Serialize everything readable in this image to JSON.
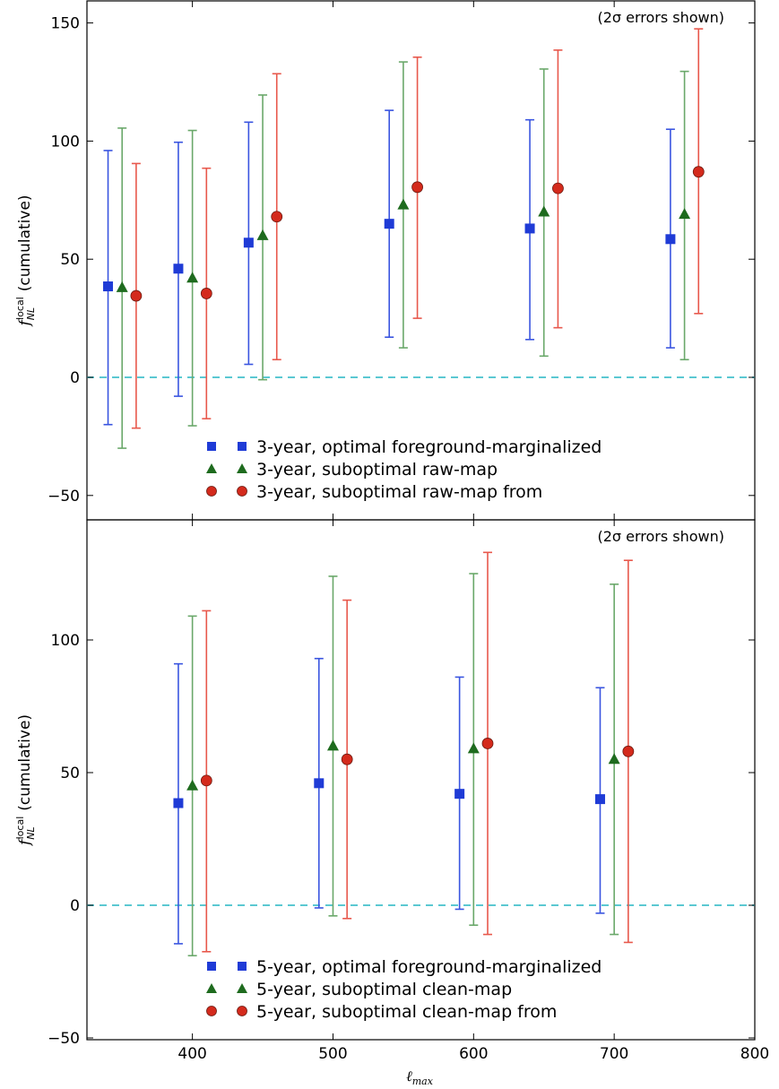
{
  "chart_data": [
    {
      "type": "scatter",
      "note": "(2σ errors shown)",
      "ylabel": "f_NL^local (cumulative)",
      "xlabel": "",
      "xlim": [
        325,
        800
      ],
      "ylim": [
        -60,
        160
      ],
      "yticks": [
        -50,
        0,
        50,
        100,
        150
      ],
      "ytick_labels": [
        "−50",
        "0",
        "50",
        "100",
        "150"
      ],
      "reference_line": {
        "y": 0,
        "style": "dashed",
        "color": "#5bc8d2"
      },
      "legend": {
        "position": "bottom-center"
      },
      "series": [
        {
          "name": "3-year, optimal foreground-marginalized",
          "marker": "square",
          "color": "#1f3bd6",
          "bar_color": "#3a55e0",
          "points": [
            {
              "x": 340,
              "y": 38.5,
              "lo": -20,
              "hi": 96
            },
            {
              "x": 390,
              "y": 46,
              "lo": -8,
              "hi": 99.5
            },
            {
              "x": 440,
              "y": 57,
              "lo": 5.5,
              "hi": 108
            },
            {
              "x": 540,
              "y": 65,
              "lo": 17,
              "hi": 113
            },
            {
              "x": 640,
              "y": 63,
              "lo": 16,
              "hi": 109
            },
            {
              "x": 740,
              "y": 58.5,
              "lo": 12.5,
              "hi": 105
            }
          ]
        },
        {
          "name": "3-year, suboptimal raw-map",
          "marker": "triangle",
          "color": "#1e6b1e",
          "bar_color": "#6aa86a",
          "points": [
            {
              "x": 350,
              "y": 38,
              "lo": -30,
              "hi": 105.5
            },
            {
              "x": 400,
              "y": 42,
              "lo": -20.5,
              "hi": 104.5
            },
            {
              "x": 450,
              "y": 60,
              "lo": -1,
              "hi": 119.5
            },
            {
              "x": 550,
              "y": 73,
              "lo": 12.5,
              "hi": 133.5
            },
            {
              "x": 650,
              "y": 70,
              "lo": 9,
              "hi": 130.5
            },
            {
              "x": 750,
              "y": 69,
              "lo": 7.5,
              "hi": 129.5
            }
          ]
        },
        {
          "name": "3-year, suboptimal raw-map from",
          "marker": "circle",
          "color": "#d42a1c",
          "bar_color": "#e8584c",
          "points": [
            {
              "x": 360,
              "y": 34.5,
              "lo": -21.5,
              "hi": 90.5
            },
            {
              "x": 410,
              "y": 35.5,
              "lo": -17.5,
              "hi": 88.5
            },
            {
              "x": 460,
              "y": 68,
              "lo": 7.5,
              "hi": 128.5
            },
            {
              "x": 560,
              "y": 80.5,
              "lo": 25,
              "hi": 135.5
            },
            {
              "x": 660,
              "y": 80,
              "lo": 21,
              "hi": 138.5
            },
            {
              "x": 760,
              "y": 87,
              "lo": 27,
              "hi": 147.5
            }
          ]
        }
      ]
    },
    {
      "type": "scatter",
      "note": "(2σ errors shown)",
      "ylabel": "f_NL^local (cumulative)",
      "xlabel": "ℓmax",
      "xlim": [
        325,
        800
      ],
      "ylim": [
        -50,
        140
      ],
      "xticks": [
        400,
        500,
        600,
        700,
        800
      ],
      "yticks": [
        -50,
        0,
        50,
        100
      ],
      "ytick_labels": [
        "−50",
        "0",
        "50",
        "100"
      ],
      "reference_line": {
        "y": 0,
        "style": "dashed",
        "color": "#5bc8d2"
      },
      "legend": {
        "position": "bottom-center"
      },
      "series": [
        {
          "name": "5-year, optimal foreground-marginalized",
          "marker": "square",
          "color": "#1f3bd6",
          "bar_color": "#3a55e0",
          "points": [
            {
              "x": 390,
              "y": 38.5,
              "lo": -14.5,
              "hi": 91
            },
            {
              "x": 490,
              "y": 46,
              "lo": -1,
              "hi": 93
            },
            {
              "x": 590,
              "y": 42,
              "lo": -1.5,
              "hi": 86
            },
            {
              "x": 690,
              "y": 40,
              "lo": -3,
              "hi": 82
            }
          ]
        },
        {
          "name": "5-year, suboptimal clean-map",
          "marker": "triangle",
          "color": "#1e6b1e",
          "bar_color": "#6aa86a",
          "points": [
            {
              "x": 400,
              "y": 45,
              "lo": -19,
              "hi": 109
            },
            {
              "x": 500,
              "y": 60,
              "lo": -4,
              "hi": 124
            },
            {
              "x": 600,
              "y": 59,
              "lo": -7.5,
              "hi": 125
            },
            {
              "x": 700,
              "y": 55,
              "lo": -11,
              "hi": 121
            }
          ]
        },
        {
          "name": "5-year, suboptimal clean-map from",
          "marker": "circle",
          "color": "#d42a1c",
          "bar_color": "#e8584c",
          "points": [
            {
              "x": 410,
              "y": 47,
              "lo": -17.5,
              "hi": 111
            },
            {
              "x": 510,
              "y": 55,
              "lo": -5,
              "hi": 115
            },
            {
              "x": 610,
              "y": 61,
              "lo": -11,
              "hi": 133
            },
            {
              "x": 710,
              "y": 58,
              "lo": -14,
              "hi": 130
            }
          ]
        }
      ]
    }
  ]
}
